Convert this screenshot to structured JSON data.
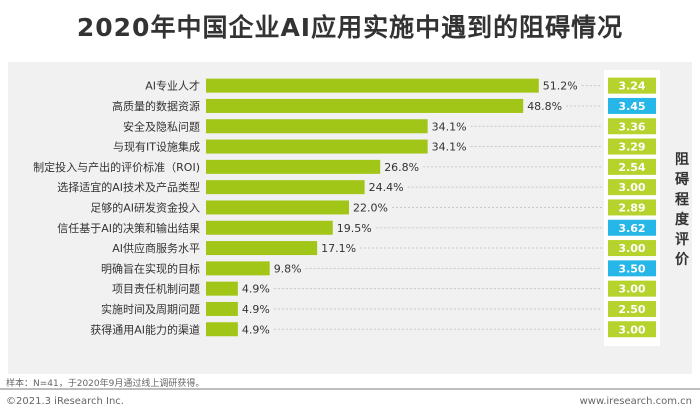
{
  "title": "2020年中国企业AI应用实施中遇到的阻碍情况",
  "rating_axis_title": "阻碍程度评价",
  "footer": {
    "sample_note": "样本：N=41，于2020年9月通过线上调研获得。",
    "copyright": "©2021.3 iResearch Inc.",
    "website": "www.iresearch.com.cn"
  },
  "colors": {
    "bar": "#a2c617",
    "rating_box": "#b6d22c",
    "rating_highlight": "#27b6e8",
    "panel": "#f1f1f1"
  },
  "chart_data": {
    "type": "bar",
    "orientation": "horizontal",
    "title": "2020年中国企业AI应用实施中遇到的阻碍情况",
    "categories": [
      "AI专业人才",
      "高质量的数据资源",
      "安全及隐私问题",
      "与现有IT设施集成",
      "制定投入与产出的评价标准（ROI)",
      "选择适宜的AI技术及产品类型",
      "足够的AI研发资金投入",
      "信任基于AI的决策和输出结果",
      "AI供应商服务水平",
      "明确旨在实现的目标",
      "项目责任机制问题",
      "实施时间及周期问题",
      "获得通用AI能力的渠道"
    ],
    "values": [
      51.2,
      48.8,
      34.1,
      34.1,
      26.8,
      24.4,
      22.0,
      19.5,
      17.1,
      9.8,
      4.9,
      4.9,
      4.9
    ],
    "value_labels": [
      "51.2%",
      "48.8%",
      "34.1%",
      "34.1%",
      "26.8%",
      "24.4%",
      "22.0%",
      "19.5%",
      "17.1%",
      "9.8%",
      "4.9%",
      "4.9%",
      "4.9%"
    ],
    "ratings": [
      "3.24",
      "3.45",
      "3.36",
      "3.29",
      "2.54",
      "3.00",
      "2.89",
      "3.62",
      "3.00",
      "3.50",
      "3.00",
      "2.50",
      "3.00"
    ],
    "highlighted_ratings": [
      1,
      7,
      9
    ],
    "xlim": [
      0,
      55
    ]
  }
}
